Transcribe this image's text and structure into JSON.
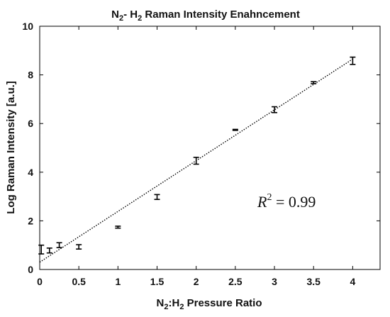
{
  "chart_data": {
    "type": "scatter",
    "title": {
      "main": "N",
      "sub1": "2",
      "mid": "- H",
      "sub2": "2",
      "rest": " Raman Intensity Enahncement"
    },
    "xlabel": {
      "a": "N",
      "sub1": "2",
      "b": ":H",
      "sub2": "2",
      "c": " Pressure Ratio"
    },
    "ylabel": "Log Raman Intensity [a.u.]",
    "xlim": [
      0,
      4.35
    ],
    "ylim": [
      0,
      10
    ],
    "x_ticks": [
      "0",
      "0.5",
      "1",
      "1.5",
      "2",
      "2.5",
      "3",
      "3.5",
      "4"
    ],
    "y_ticks": [
      "0",
      "2",
      "4",
      "6",
      "8",
      "10"
    ],
    "x_tick_values": [
      0,
      0.5,
      1,
      1.5,
      2,
      2.5,
      3,
      3.5,
      4
    ],
    "y_tick_values": [
      0,
      2,
      4,
      6,
      8,
      10
    ],
    "points": [
      {
        "x": 0.02,
        "y": 0.82,
        "err": 0.18
      },
      {
        "x": 0.125,
        "y": 0.78,
        "err": 0.1
      },
      {
        "x": 0.25,
        "y": 1.0,
        "err": 0.1
      },
      {
        "x": 0.5,
        "y": 0.93,
        "err": 0.09
      },
      {
        "x": 1.0,
        "y": 1.74,
        "err": 0.04
      },
      {
        "x": 1.5,
        "y": 2.98,
        "err": 0.1
      },
      {
        "x": 2.0,
        "y": 4.47,
        "err": 0.14
      },
      {
        "x": 2.5,
        "y": 5.74,
        "err": 0.02
      },
      {
        "x": 3.0,
        "y": 6.57,
        "err": 0.12
      },
      {
        "x": 3.5,
        "y": 7.68,
        "err": 0.04
      },
      {
        "x": 4.0,
        "y": 8.58,
        "err": 0.15
      }
    ],
    "fit_line": {
      "x0": 0,
      "y0": 0.3,
      "x1": 4.0,
      "y1": 8.65
    },
    "annotation": {
      "base": "R",
      "exp": "2",
      "eq": " = 0.99"
    },
    "colors": {
      "axis": "#000000",
      "marker": "#000000",
      "fit": "#000000"
    }
  }
}
